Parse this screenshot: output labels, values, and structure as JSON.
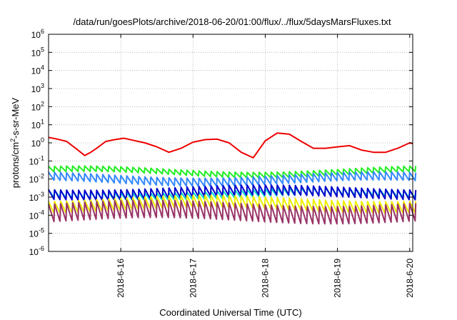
{
  "chart_data": {
    "type": "line",
    "title": "/data/run/goesPlots/archive/2018-06-20/01:00/flux/../flux/5daysMarsFluxes.txt",
    "xlabel": "Coordinated Universal Time (UTC)",
    "ylabel": "protons/cm2-s-sr-MeV",
    "ylabel_parts": {
      "base": "protons/cm",
      "sup": "2",
      "rest": "-s-sr-MeV"
    },
    "x_tick_labels": [
      "2018-6-16",
      "2018-6-17",
      "2018-6-18",
      "2018-6-19",
      "2018-6-20"
    ],
    "x_range_days": [
      "2018-06-15 00:00",
      "2018-06-20 01:00"
    ],
    "y_scale": "log",
    "ylim": [
      1e-06,
      1000000
    ],
    "y_tick_exponents": [
      -6,
      -5,
      -4,
      -3,
      -2,
      -1,
      0,
      1,
      2,
      3,
      4,
      5,
      6
    ],
    "y_tick_base": "10",
    "grid": true,
    "series": [
      {
        "color": "#ee0000",
        "kind": "smooth",
        "x": [
          "2018-06-15 00:00",
          "2018-06-15 03:00",
          "2018-06-15 06:00",
          "2018-06-15 09:00",
          "2018-06-15 12:00",
          "2018-06-15 14:00",
          "2018-06-15 16:00",
          "2018-06-15 19:00",
          "2018-06-15 22:00",
          "2018-06-16 01:00",
          "2018-06-16 04:00",
          "2018-06-16 08:00",
          "2018-06-16 12:00",
          "2018-06-16 16:00",
          "2018-06-16 20:00",
          "2018-06-17 00:00",
          "2018-06-17 04:00",
          "2018-06-17 08:00",
          "2018-06-17 12:00",
          "2018-06-17 16:00",
          "2018-06-17 20:00",
          "2018-06-18 00:00",
          "2018-06-18 04:00",
          "2018-06-18 08:00",
          "2018-06-18 12:00",
          "2018-06-18 16:00",
          "2018-06-18 20:00",
          "2018-06-19 00:00",
          "2018-06-19 04:00",
          "2018-06-19 08:00",
          "2018-06-19 12:00",
          "2018-06-19 16:00",
          "2018-06-19 20:00",
          "2018-06-20 00:00",
          "2018-06-20 01:00"
        ],
        "y": [
          2.0,
          1.6,
          1.2,
          0.5,
          0.2,
          0.3,
          0.5,
          1.2,
          1.5,
          1.8,
          1.4,
          1.0,
          0.6,
          0.3,
          0.5,
          1.1,
          1.5,
          1.6,
          1.0,
          0.3,
          0.15,
          1.3,
          3.5,
          3.0,
          1.2,
          0.5,
          0.5,
          0.6,
          0.7,
          0.4,
          0.3,
          0.3,
          0.5,
          1.0,
          0.9
        ]
      },
      {
        "color": "#22ee22",
        "kind": "sawtooth",
        "base": 0.025,
        "amp": 2.0,
        "drift": 1.5
      },
      {
        "color": "#3388ff",
        "kind": "sawtooth",
        "base": 0.01,
        "amp": 2.8,
        "drift": 1.5
      },
      {
        "color": "#00ddcc",
        "kind": "sawtooth",
        "base": 0.0015,
        "amp": 2.5,
        "drift": 1.4
      },
      {
        "color": "#0000cc",
        "kind": "sawtooth",
        "base": 0.0018,
        "amp": 3.5,
        "drift": 1.4
      },
      {
        "color": "#eeee00",
        "kind": "sawtooth",
        "base": 0.0004,
        "amp": 4.5,
        "drift": 1.5
      },
      {
        "color": "#993366",
        "kind": "sawtooth",
        "base": 0.00015,
        "amp": 9.0,
        "drift": 1.5
      }
    ]
  }
}
